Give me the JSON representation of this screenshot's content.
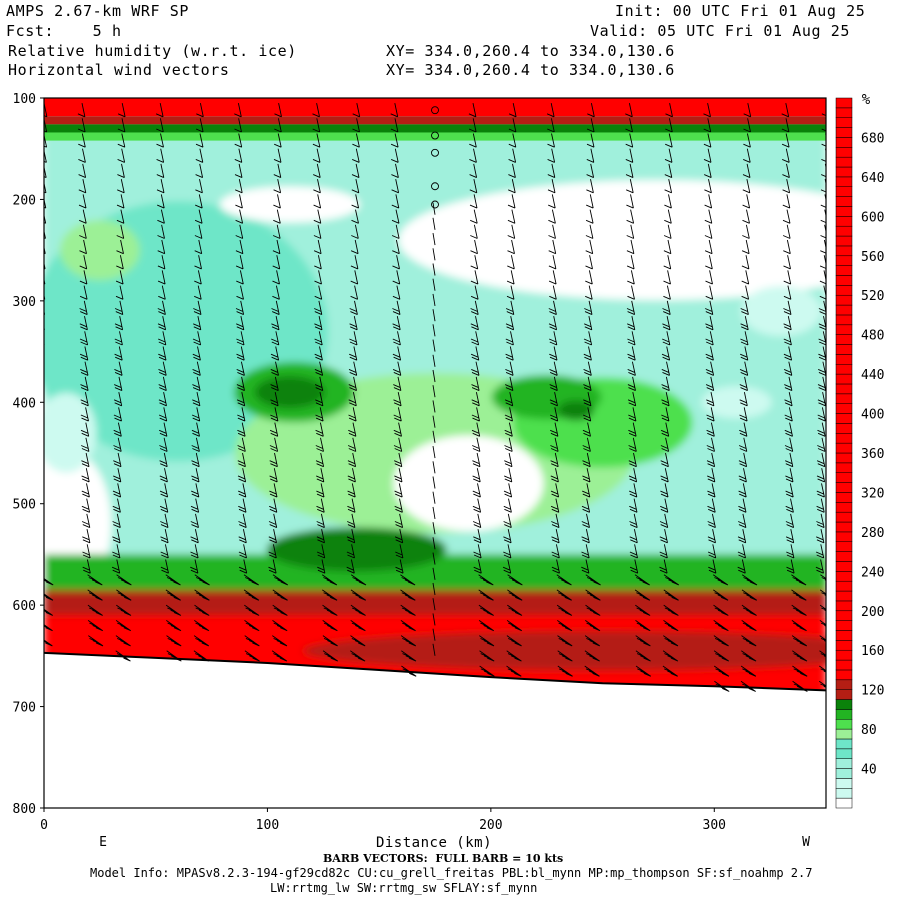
{
  "header": {
    "model": "AMPS 2.67-km WRF SP",
    "fcst": "Fcst:    5 h",
    "field1": "Relative humidity (w.r.t. ice)",
    "field2": "Horizontal wind vectors",
    "init": "Init: 00 UTC Fri 01 Aug 25",
    "valid": "Valid: 05 UTC Fri 01 Aug 25",
    "xy1": "XY= 334.0,260.4 to 334.0,130.6",
    "xy2": "XY= 334.0,260.4 to 334.0,130.6"
  },
  "footer": {
    "barb_note": "BARB VECTORS:  FULL BARB = 10 kts",
    "model_info": "Model Info: MPASv8.2.3-194-gf29cd82c CU:cu_grell_freitas PBL:bl_mynn MP:mp_thompson SF:sf_noahmp 2.7",
    "model_info2": "LW:rrtmg_lw SW:rrtmg_sw SFLAY:sf_mynn"
  },
  "chart_data": {
    "type": "heatmap",
    "title": "Relative humidity (w.r.t. ice)",
    "xlabel": "Distance (km)",
    "ylabel": "",
    "x_end_labels": {
      "left": "E",
      "right": "W"
    },
    "xlim": [
      0,
      350
    ],
    "ylim": [
      800,
      100
    ],
    "x_ticks": [
      0,
      100,
      200,
      300
    ],
    "y_ticks": [
      100,
      200,
      300,
      400,
      500,
      600,
      700,
      800
    ],
    "colorbar": {
      "unit": "%",
      "levels": [
        0,
        10,
        20,
        30,
        40,
        50,
        60,
        70,
        80,
        90,
        100,
        110,
        120,
        130,
        140,
        150,
        160,
        170,
        180,
        190,
        200,
        210,
        220,
        230,
        240,
        250,
        260,
        270,
        280,
        290,
        300,
        310,
        320,
        330,
        340,
        350,
        360,
        370,
        380,
        390,
        400,
        410,
        420,
        430,
        440,
        450,
        460,
        470,
        480,
        490,
        500,
        510,
        520,
        530,
        540,
        550,
        560,
        570,
        580,
        590,
        600,
        610,
        620,
        630,
        640,
        650,
        660,
        670,
        680,
        690,
        700,
        710
      ],
      "tick_labels": [
        40,
        80,
        120,
        160,
        200,
        240,
        280,
        320,
        360,
        400,
        440,
        480,
        520,
        560,
        600,
        640,
        680
      ],
      "colors": {
        "white": "#ffffff",
        "pale_cyan": "#cdfaf0",
        "light_cyan": "#a0f0dc",
        "aqua": "#6ee6c8",
        "light_green": "#9cf096",
        "green": "#4ee04e",
        "mid_green": "#22b422",
        "dark_green": "#0a820a",
        "brown": "#b41e14",
        "red": "#ff0000"
      }
    },
    "terrain": {
      "x": [
        0,
        50,
        100,
        150,
        200,
        250,
        300,
        350
      ],
      "p": [
        647,
        652,
        657,
        664,
        671,
        677,
        680,
        684
      ]
    },
    "barbs": {
      "x": [
        0,
        17,
        35,
        52,
        70,
        87,
        105,
        122,
        140,
        157,
        175,
        192,
        210,
        227,
        245,
        262,
        280,
        297,
        315,
        332,
        350
      ],
      "p_top": 105,
      "p_step": 15,
      "calm_marks": {
        "x": 175,
        "p": [
          112,
          137,
          154,
          187,
          205
        ]
      }
    }
  }
}
